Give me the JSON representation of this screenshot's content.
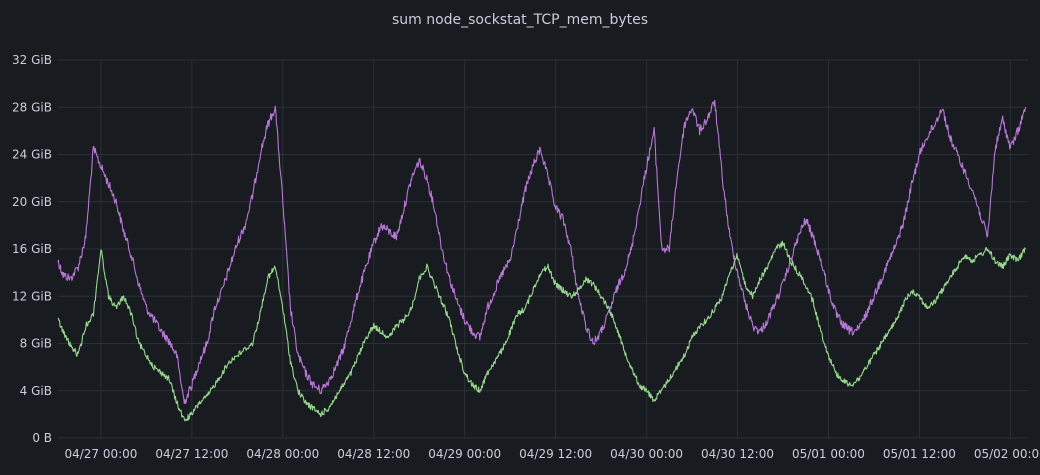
{
  "panel": {
    "title": "sum node_sockstat_TCP_mem_bytes"
  },
  "chart_data": {
    "type": "line",
    "title": "sum node_sockstat_TCP_mem_bytes",
    "xlabel": "",
    "ylabel": "",
    "ylim": [
      0,
      32
    ],
    "y_unit": "GiB",
    "y_ticks": [
      "0 B",
      "4 GiB",
      "8 GiB",
      "12 GiB",
      "16 GiB",
      "20 GiB",
      "24 GiB",
      "28 GiB",
      "32 GiB"
    ],
    "y_tick_values": [
      0,
      4,
      8,
      12,
      16,
      20,
      24,
      28,
      32
    ],
    "x_range": [
      "04/26 18:20",
      "05/02 02:20"
    ],
    "x_ticks": [
      "04/27 00:00",
      "04/27 12:00",
      "04/28 00:00",
      "04/28 12:00",
      "04/29 00:00",
      "04/29 12:00",
      "04/30 00:00",
      "04/30 12:00",
      "05/01 00:00",
      "05/01 12:00",
      "05/02 00:00"
    ],
    "x_tick_times": [
      "04/27 00:00",
      "04/27 12:00",
      "04/28 00:00",
      "04/28 12:00",
      "04/29 00:00",
      "04/29 12:00",
      "04/30 00:00",
      "04/30 12:00",
      "05/01 00:00",
      "05/01 12:00",
      "05/02 00:00"
    ],
    "grid": true,
    "legend": "none",
    "colors": {
      "background": "#181b1f",
      "grid": "#2c3036",
      "text": "#ccccdc",
      "series_purple": "#b877d9",
      "series_green": "#96d98d"
    },
    "series": [
      {
        "color": "#b877d9",
        "points": [
          [
            "04/26 18:20",
            15.0
          ],
          [
            "04/26 19:00",
            13.8
          ],
          [
            "04/26 20:00",
            13.5
          ],
          [
            "04/26 21:00",
            14.5
          ],
          [
            "04/26 22:00",
            17.0
          ],
          [
            "04/26 23:00",
            24.5
          ],
          [
            "04/27 00:00",
            23.0
          ],
          [
            "04/27 01:00",
            21.5
          ],
          [
            "04/27 02:00",
            20.0
          ],
          [
            "04/27 03:00",
            17.5
          ],
          [
            "04/27 04:00",
            15.5
          ],
          [
            "04/27 05:00",
            13.0
          ],
          [
            "04/27 06:00",
            11.0
          ],
          [
            "04/27 07:00",
            10.0
          ],
          [
            "04/27 08:00",
            9.0
          ],
          [
            "04/27 09:00",
            8.2
          ],
          [
            "04/27 10:00",
            7.0
          ],
          [
            "04/27 11:00",
            3.0
          ],
          [
            "04/27 12:00",
            4.5
          ],
          [
            "04/27 13:00",
            6.5
          ],
          [
            "04/27 14:00",
            8.0
          ],
          [
            "04/27 15:00",
            11.0
          ],
          [
            "04/27 16:00",
            12.5
          ],
          [
            "04/27 17:00",
            14.5
          ],
          [
            "04/27 18:00",
            16.5
          ],
          [
            "04/27 19:00",
            18.0
          ],
          [
            "04/27 20:00",
            20.5
          ],
          [
            "04/27 21:00",
            24.0
          ],
          [
            "04/27 22:00",
            26.5
          ],
          [
            "04/27 23:00",
            28.0
          ],
          [
            "04/28 00:00",
            20.0
          ],
          [
            "04/28 01:00",
            11.0
          ],
          [
            "04/28 02:00",
            7.0
          ],
          [
            "04/28 03:00",
            5.5
          ],
          [
            "04/28 04:00",
            4.5
          ],
          [
            "04/28 05:00",
            4.0
          ],
          [
            "04/28 06:00",
            4.8
          ],
          [
            "04/28 07:00",
            6.0
          ],
          [
            "04/28 08:00",
            7.5
          ],
          [
            "04/28 09:00",
            10.0
          ],
          [
            "04/28 10:00",
            12.5
          ],
          [
            "04/28 11:00",
            14.5
          ],
          [
            "04/28 12:00",
            16.5
          ],
          [
            "04/28 13:00",
            18.0
          ],
          [
            "04/28 14:00",
            17.5
          ],
          [
            "04/28 15:00",
            17.0
          ],
          [
            "04/28 16:00",
            19.5
          ],
          [
            "04/28 17:00",
            22.0
          ],
          [
            "04/28 18:00",
            23.5
          ],
          [
            "04/28 19:00",
            22.0
          ],
          [
            "04/28 20:00",
            19.5
          ],
          [
            "04/28 21:00",
            16.0
          ],
          [
            "04/28 22:00",
            13.5
          ],
          [
            "04/28 23:00",
            11.5
          ],
          [
            "04/29 00:00",
            10.0
          ],
          [
            "04/29 01:00",
            9.0
          ],
          [
            "04/29 02:00",
            8.5
          ],
          [
            "04/29 03:00",
            11.0
          ],
          [
            "04/29 04:00",
            12.5
          ],
          [
            "04/29 05:00",
            14.0
          ],
          [
            "04/29 06:00",
            15.0
          ],
          [
            "04/29 07:00",
            18.0
          ],
          [
            "04/29 08:00",
            21.0
          ],
          [
            "04/29 09:00",
            23.0
          ],
          [
            "04/29 10:00",
            24.5
          ],
          [
            "04/29 11:00",
            22.0
          ],
          [
            "04/29 12:00",
            19.5
          ],
          [
            "04/29 13:00",
            18.5
          ],
          [
            "04/29 14:00",
            16.0
          ],
          [
            "04/29 15:00",
            12.0
          ],
          [
            "04/29 16:00",
            9.5
          ],
          [
            "04/29 17:00",
            8.0
          ],
          [
            "04/29 18:00",
            9.0
          ],
          [
            "04/29 19:00",
            10.5
          ],
          [
            "04/29 20:00",
            12.5
          ],
          [
            "04/29 21:00",
            14.0
          ],
          [
            "04/29 22:00",
            16.0
          ],
          [
            "04/29 23:00",
            19.5
          ],
          [
            "04/30 00:00",
            23.0
          ],
          [
            "04/30 01:00",
            26.0
          ],
          [
            "04/30 02:00",
            16.0
          ],
          [
            "04/30 03:00",
            16.0
          ],
          [
            "04/30 04:00",
            22.0
          ],
          [
            "04/30 05:00",
            26.5
          ],
          [
            "04/30 06:00",
            28.0
          ],
          [
            "04/30 07:00",
            26.0
          ],
          [
            "04/30 08:00",
            27.0
          ],
          [
            "04/30 09:00",
            28.5
          ],
          [
            "04/30 10:00",
            22.0
          ],
          [
            "04/30 11:00",
            17.0
          ],
          [
            "04/30 12:00",
            14.0
          ],
          [
            "04/30 13:00",
            11.5
          ],
          [
            "04/30 14:00",
            9.5
          ],
          [
            "04/30 15:00",
            9.0
          ],
          [
            "04/30 16:00",
            10.0
          ],
          [
            "04/30 17:00",
            11.5
          ],
          [
            "04/30 18:00",
            13.0
          ],
          [
            "04/30 19:00",
            15.0
          ],
          [
            "04/30 20:00",
            17.0
          ],
          [
            "04/30 21:00",
            18.5
          ],
          [
            "04/30 22:00",
            17.0
          ],
          [
            "04/30 23:00",
            15.0
          ],
          [
            "05/01 00:00",
            12.5
          ],
          [
            "05/01 01:00",
            10.5
          ],
          [
            "05/01 02:00",
            9.5
          ],
          [
            "05/01 03:00",
            9.0
          ],
          [
            "05/01 04:00",
            9.2
          ],
          [
            "05/01 05:00",
            10.5
          ],
          [
            "05/01 06:00",
            12.0
          ],
          [
            "05/01 07:00",
            13.5
          ],
          [
            "05/01 08:00",
            15.0
          ],
          [
            "05/01 09:00",
            16.5
          ],
          [
            "05/01 10:00",
            18.5
          ],
          [
            "05/01 11:00",
            21.5
          ],
          [
            "05/01 12:00",
            24.0
          ],
          [
            "05/01 13:00",
            25.5
          ],
          [
            "05/01 14:00",
            26.5
          ],
          [
            "05/01 15:00",
            28.0
          ],
          [
            "05/01 16:00",
            25.5
          ],
          [
            "05/01 17:00",
            24.0
          ],
          [
            "05/01 18:00",
            22.5
          ],
          [
            "05/01 19:00",
            21.0
          ],
          [
            "05/01 20:00",
            19.0
          ],
          [
            "05/01 21:00",
            17.0
          ],
          [
            "05/01 22:00",
            24.5
          ],
          [
            "05/01 23:00",
            27.0
          ],
          [
            "05/02 00:00",
            24.5
          ],
          [
            "05/02 01:00",
            26.0
          ],
          [
            "05/02 02:00",
            28.0
          ]
        ]
      },
      {
        "color": "#96d98d",
        "points": [
          [
            "04/26 18:20",
            10.0
          ],
          [
            "04/26 19:00",
            9.0
          ],
          [
            "04/26 20:00",
            7.8
          ],
          [
            "04/26 21:00",
            7.0
          ],
          [
            "04/26 22:00",
            9.5
          ],
          [
            "04/26 23:00",
            10.5
          ],
          [
            "04/27 00:00",
            16.0
          ],
          [
            "04/27 01:00",
            12.0
          ],
          [
            "04/27 02:00",
            11.0
          ],
          [
            "04/27 03:00",
            12.0
          ],
          [
            "04/27 04:00",
            10.5
          ],
          [
            "04/27 05:00",
            8.0
          ],
          [
            "04/27 06:00",
            7.0
          ],
          [
            "04/27 07:00",
            6.0
          ],
          [
            "04/27 08:00",
            5.5
          ],
          [
            "04/27 09:00",
            5.0
          ],
          [
            "04/27 10:00",
            3.0
          ],
          [
            "04/27 11:00",
            1.5
          ],
          [
            "04/27 12:00",
            2.0
          ],
          [
            "04/27 13:00",
            3.0
          ],
          [
            "04/27 14:00",
            3.5
          ],
          [
            "04/27 15:00",
            4.5
          ],
          [
            "04/27 16:00",
            5.5
          ],
          [
            "04/27 17:00",
            6.5
          ],
          [
            "04/27 18:00",
            7.0
          ],
          [
            "04/27 19:00",
            7.5
          ],
          [
            "04/27 20:00",
            8.0
          ],
          [
            "04/27 21:00",
            10.5
          ],
          [
            "04/27 22:00",
            13.5
          ],
          [
            "04/27 23:00",
            14.5
          ],
          [
            "04/28 00:00",
            11.0
          ],
          [
            "04/28 01:00",
            6.5
          ],
          [
            "04/28 02:00",
            4.0
          ],
          [
            "04/28 03:00",
            3.0
          ],
          [
            "04/28 04:00",
            2.5
          ],
          [
            "04/28 05:00",
            2.0
          ],
          [
            "04/28 06:00",
            2.5
          ],
          [
            "04/28 07:00",
            3.5
          ],
          [
            "04/28 08:00",
            4.5
          ],
          [
            "04/28 09:00",
            5.5
          ],
          [
            "04/28 10:00",
            7.0
          ],
          [
            "04/28 11:00",
            8.5
          ],
          [
            "04/28 12:00",
            9.5
          ],
          [
            "04/28 13:00",
            9.0
          ],
          [
            "04/28 14:00",
            8.5
          ],
          [
            "04/28 15:00",
            9.5
          ],
          [
            "04/28 16:00",
            10.0
          ],
          [
            "04/28 17:00",
            11.0
          ],
          [
            "04/28 18:00",
            13.5
          ],
          [
            "04/28 19:00",
            14.5
          ],
          [
            "04/28 20:00",
            13.0
          ],
          [
            "04/28 21:00",
            11.5
          ],
          [
            "04/28 22:00",
            10.0
          ],
          [
            "04/28 23:00",
            7.5
          ],
          [
            "04/29 00:00",
            5.5
          ],
          [
            "04/29 01:00",
            4.5
          ],
          [
            "04/29 02:00",
            4.0
          ],
          [
            "04/29 03:00",
            5.5
          ],
          [
            "04/29 04:00",
            6.5
          ],
          [
            "04/29 05:00",
            7.5
          ],
          [
            "04/29 06:00",
            9.0
          ],
          [
            "04/29 07:00",
            10.5
          ],
          [
            "04/29 08:00",
            11.0
          ],
          [
            "04/29 09:00",
            12.5
          ],
          [
            "04/29 10:00",
            14.0
          ],
          [
            "04/29 11:00",
            14.5
          ],
          [
            "04/29 12:00",
            13.0
          ],
          [
            "04/29 13:00",
            12.5
          ],
          [
            "04/29 14:00",
            12.0
          ],
          [
            "04/29 15:00",
            12.5
          ],
          [
            "04/29 16:00",
            13.5
          ],
          [
            "04/29 17:00",
            13.0
          ],
          [
            "04/29 18:00",
            12.0
          ],
          [
            "04/29 19:00",
            11.0
          ],
          [
            "04/29 20:00",
            9.5
          ],
          [
            "04/29 21:00",
            7.5
          ],
          [
            "04/29 22:00",
            6.0
          ],
          [
            "04/29 23:00",
            4.5
          ],
          [
            "04/30 00:00",
            4.0
          ],
          [
            "04/30 01:00",
            3.2
          ],
          [
            "04/30 02:00",
            4.0
          ],
          [
            "04/30 03:00",
            5.0
          ],
          [
            "04/30 04:00",
            6.0
          ],
          [
            "04/30 05:00",
            7.0
          ],
          [
            "04/30 06:00",
            8.5
          ],
          [
            "04/30 07:00",
            9.5
          ],
          [
            "04/30 08:00",
            10.0
          ],
          [
            "04/30 09:00",
            11.0
          ],
          [
            "04/30 10:00",
            12.0
          ],
          [
            "04/30 11:00",
            14.0
          ],
          [
            "04/30 12:00",
            15.5
          ],
          [
            "04/30 13:00",
            13.0
          ],
          [
            "04/30 14:00",
            12.0
          ],
          [
            "04/30 15:00",
            13.5
          ],
          [
            "04/30 16:00",
            14.5
          ],
          [
            "04/30 17:00",
            16.0
          ],
          [
            "04/30 18:00",
            16.5
          ],
          [
            "04/30 19:00",
            15.0
          ],
          [
            "04/30 20:00",
            14.0
          ],
          [
            "04/30 21:00",
            13.0
          ],
          [
            "04/30 22:00",
            11.5
          ],
          [
            "04/30 23:00",
            9.0
          ],
          [
            "05/01 00:00",
            7.0
          ],
          [
            "05/01 01:00",
            5.5
          ],
          [
            "05/01 02:00",
            4.8
          ],
          [
            "05/01 03:00",
            4.5
          ],
          [
            "05/01 04:00",
            5.0
          ],
          [
            "05/01 05:00",
            6.0
          ],
          [
            "05/01 06:00",
            7.0
          ],
          [
            "05/01 07:00",
            8.0
          ],
          [
            "05/01 08:00",
            9.0
          ],
          [
            "05/01 09:00",
            10.0
          ],
          [
            "05/01 10:00",
            11.5
          ],
          [
            "05/01 11:00",
            12.5
          ],
          [
            "05/01 12:00",
            12.0
          ],
          [
            "05/01 13:00",
            11.0
          ],
          [
            "05/01 14:00",
            11.5
          ],
          [
            "05/01 15:00",
            12.5
          ],
          [
            "05/01 16:00",
            13.5
          ],
          [
            "05/01 17:00",
            14.5
          ],
          [
            "05/01 18:00",
            15.5
          ],
          [
            "05/01 19:00",
            15.0
          ],
          [
            "05/01 20:00",
            15.5
          ],
          [
            "05/01 21:00",
            16.0
          ],
          [
            "05/01 22:00",
            15.0
          ],
          [
            "05/01 23:00",
            14.5
          ],
          [
            "05/02 00:00",
            15.5
          ],
          [
            "05/02 01:00",
            15.0
          ],
          [
            "05/02 02:00",
            16.0
          ]
        ]
      }
    ]
  }
}
